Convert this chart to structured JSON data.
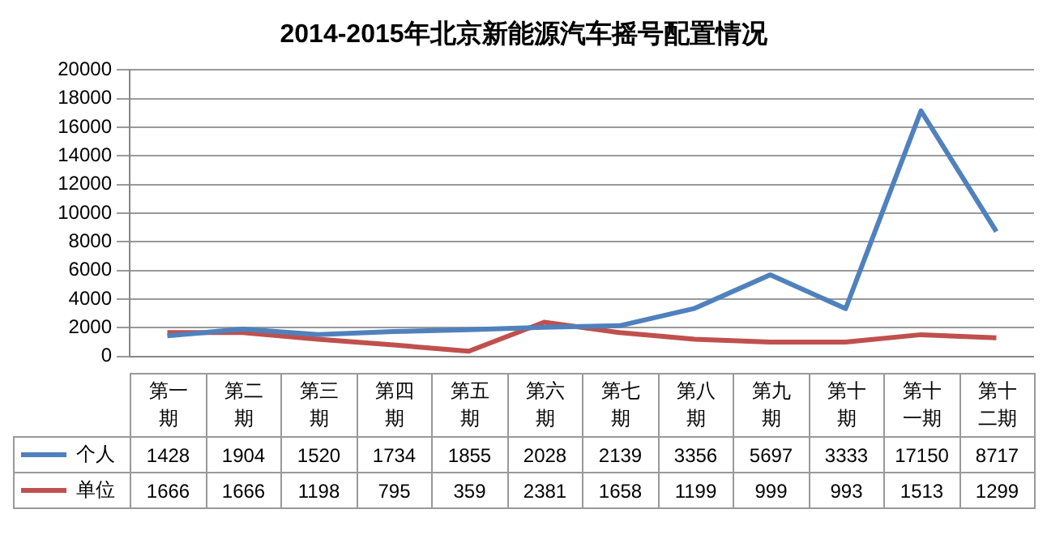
{
  "chart_data": {
    "type": "line",
    "title": "2014-2015年北京新能源汽车摇号配置情况",
    "categories": [
      "第一期",
      "第二期",
      "第三期",
      "第四期",
      "第五期",
      "第六期",
      "第七期",
      "第八期",
      "第九期",
      "第十期",
      "第十一期",
      "第十二期"
    ],
    "series": [
      {
        "name": "个人",
        "color": "#4f81bd",
        "values": [
          1428,
          1904,
          1520,
          1734,
          1855,
          2028,
          2139,
          3356,
          5697,
          3333,
          17150,
          8717
        ]
      },
      {
        "name": "单位",
        "color": "#c0504d",
        "values": [
          1666,
          1666,
          1198,
          795,
          359,
          2381,
          1658,
          1199,
          999,
          993,
          1513,
          1299
        ]
      }
    ],
    "ylim": [
      0,
      20000
    ],
    "yticks": [
      0,
      2000,
      4000,
      6000,
      8000,
      10000,
      12000,
      14000,
      16000,
      18000,
      20000
    ],
    "grid": "y",
    "legend": "bottom",
    "marker": "none",
    "line_style": "solid",
    "data_labels": true
  }
}
